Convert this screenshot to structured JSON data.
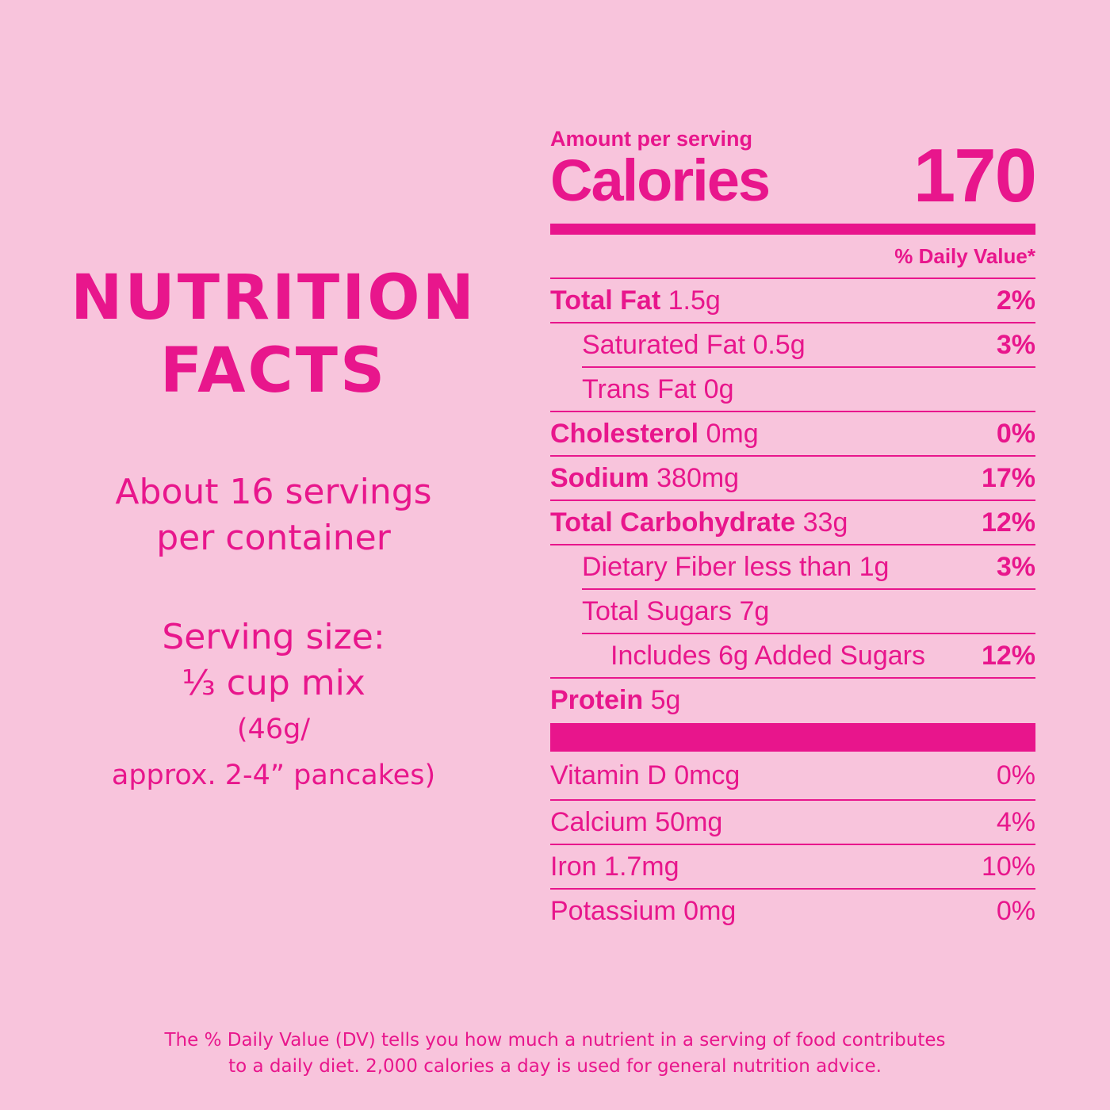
{
  "heading": {
    "line1": "NUTRITION",
    "line2": "FACTS"
  },
  "servings": {
    "line1": "About 16 servings",
    "line2": "per container"
  },
  "serving_size": {
    "label": "Serving size:",
    "amount": "⅓ cup mix",
    "grams": "(46g/",
    "approx": "approx. 2-4” pancakes)"
  },
  "panel": {
    "amount_label": "Amount per serving",
    "calories_label": "Calories",
    "calories_value": "170",
    "dv_header": "% Daily Value*",
    "nutrients": [
      {
        "name": "Total Fat",
        "amount": "1.5g",
        "dv": "2%"
      },
      {
        "name": "",
        "amount": "Saturated Fat 0.5g",
        "dv": "3%"
      },
      {
        "name": "",
        "amount": "Trans Fat 0g",
        "dv": ""
      },
      {
        "name": "Cholesterol",
        "amount": "0mg",
        "dv": "0%"
      },
      {
        "name": "Sodium",
        "amount": "380mg",
        "dv": "17%"
      },
      {
        "name": "Total Carbohydrate",
        "amount": "33g",
        "dv": "12%"
      },
      {
        "name": "",
        "amount": "Dietary Fiber less than 1g",
        "dv": "3%"
      },
      {
        "name": "",
        "amount": "Total Sugars 7g",
        "dv": ""
      },
      {
        "name": "",
        "amount": "Includes 6g Added Sugars",
        "dv": "12%"
      },
      {
        "name": "Protein",
        "amount": "5g",
        "dv": ""
      }
    ],
    "vitamins": [
      {
        "label": "Vitamin D 0mcg",
        "dv": "0%"
      },
      {
        "label": "Calcium 50mg",
        "dv": "4%"
      },
      {
        "label": "Iron 1.7mg",
        "dv": "10%"
      },
      {
        "label": "Potassium 0mg",
        "dv": "0%"
      }
    ]
  },
  "footnote": {
    "line1": "The % Daily Value (DV) tells you how much a nutrient in a serving of food contributes",
    "line2": "to a daily diet. 2,000 calories a day is used for general nutrition advice."
  },
  "colors": {
    "background": "#f8c4dc",
    "accent": "#e8168c"
  }
}
